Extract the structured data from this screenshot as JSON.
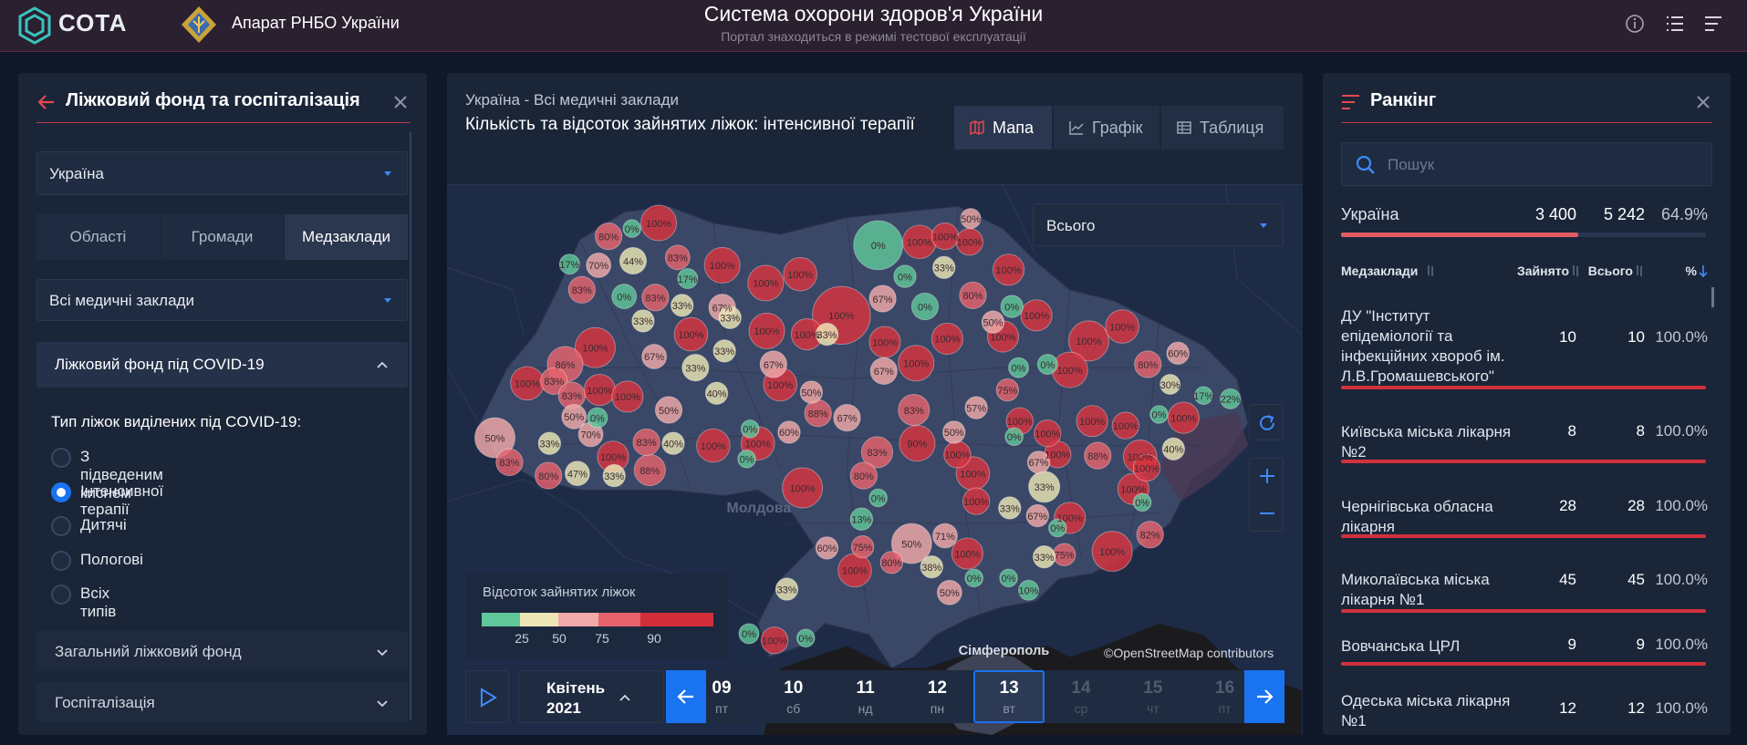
{
  "header": {
    "logo": "СОТА",
    "organization": "Апарат РНБО України",
    "title": "Система охорони здоров'я України",
    "subtitle": "Портал знаходиться в режимі тестової експлуатації"
  },
  "left_panel": {
    "title": "Ліжковий фонд та госпіталізація",
    "region": "Україна",
    "tabs": [
      "Області",
      "Громади",
      "Медзаклади"
    ],
    "facilities": "Всі медичні заклади",
    "sections": [
      "Ліжковий фонд під COVID-19",
      "Загальний ліжковий фонд",
      "Госпіталізація"
    ],
    "bed_type_label": "Тип ліжок виділених під COVID-19:",
    "bed_types": [
      "З підведеним киснем",
      "Інтенсивної терапії",
      "Дитячі",
      "Пологові",
      "Всіх типів"
    ]
  },
  "main_panel": {
    "breadcrumb": "Україна - Всі медичні заклади",
    "title": "Кількість та відсоток зайнятих ліжок: інтенсивної терапії",
    "views": [
      "Мапа",
      "Графік",
      "Таблиця"
    ],
    "filter": "Всього",
    "map": {
      "bubbles": [
        "100%",
        "80%",
        "0%",
        "83%",
        "17%",
        "70%",
        "44%",
        "17%",
        "100%",
        "83%",
        "0%",
        "83%",
        "33%",
        "67%",
        "33%",
        "100%",
        "100%",
        "0%",
        "100%",
        "100%",
        "50%",
        "100%",
        "33%",
        "0%",
        "67%",
        "0%",
        "80%",
        "100%",
        "0%",
        "50%",
        "100%",
        "100%",
        "100%",
        "100%",
        "80%",
        "60%",
        "30%",
        "17%",
        "22%",
        "100%",
        "0%",
        "40%",
        "100%",
        "100%",
        "88%",
        "100%",
        "100%",
        "100%",
        "0%",
        "82%",
        "100%",
        "75%",
        "33%",
        "100%",
        "33%",
        "33%",
        "67%",
        "0%",
        "67%",
        "100%",
        "0%",
        "100%",
        "100%",
        "100%",
        "100%",
        "100%",
        "100%",
        "71%",
        "38%",
        "50%",
        "0%",
        "0%",
        "10%",
        "50%",
        "13%",
        "75%",
        "80%",
        "100%",
        "60%",
        "80%",
        "0%",
        "83%",
        "90%",
        "83%",
        "50%",
        "57%",
        "75%",
        "0%",
        "0%",
        "100%",
        "100%",
        "100%",
        "67%",
        "100%",
        "100%",
        "33%",
        "100%",
        "67%",
        "100%",
        "33%",
        "100%",
        "67%",
        "33%",
        "33%",
        "100%",
        "86%",
        "100%",
        "83%",
        "83%",
        "100%",
        "100%",
        "50%",
        "0%",
        "50%",
        "40%",
        "100%",
        "50%",
        "67%",
        "88%",
        "60%",
        "100%",
        "0%",
        "100%",
        "0%",
        "40%",
        "83%",
        "100%",
        "33%",
        "47%",
        "80%",
        "33%",
        "83%",
        "50%",
        "70%",
        "88%",
        "100%",
        "33%",
        "100%",
        "0%",
        "0%"
      ],
      "places": [
        "Молдова",
        "Сімферополь"
      ],
      "attribution": "©OpenStreetMap contributors"
    },
    "legend": {
      "title": "Відсоток зайнятих ліжок",
      "ticks": [
        "25",
        "50",
        "75",
        "90"
      ]
    },
    "timeline": {
      "month": "Квітень",
      "year": "2021",
      "days": [
        {
          "day": "09",
          "weekday": "пт"
        },
        {
          "day": "10",
          "weekday": "сб"
        },
        {
          "day": "11",
          "weekday": "нд"
        },
        {
          "day": "12",
          "weekday": "пн"
        },
        {
          "day": "13",
          "weekday": "вт"
        },
        {
          "day": "14",
          "weekday": "ср"
        },
        {
          "day": "15",
          "weekday": "чт"
        },
        {
          "day": "16",
          "weekday": "пт"
        }
      ]
    }
  },
  "right_panel": {
    "title": "Ранкінг",
    "search_placeholder": "Пошук",
    "total": {
      "name": "Україна",
      "occupied": "3 400",
      "total": "5 242",
      "percent": "64.9%"
    },
    "columns": [
      "Медзаклади",
      "Зайнято",
      "Всього",
      "%"
    ],
    "rows": [
      {
        "name": "ДУ \"Інститут епідеміології та інфекційних хвороб ім. Л.В.Громашевського\"",
        "occupied": "10",
        "total": "10",
        "percent": "100.0%"
      },
      {
        "name": "Київська міська лікарня №2",
        "occupied": "8",
        "total": "8",
        "percent": "100.0%"
      },
      {
        "name": "Чернігівська обласна лікарня",
        "occupied": "28",
        "total": "28",
        "percent": "100.0%"
      },
      {
        "name": "Миколаївська міська лікарня №1",
        "occupied": "45",
        "total": "45",
        "percent": "100.0%"
      },
      {
        "name": "Вовчанська ЦРЛ",
        "occupied": "9",
        "total": "9",
        "percent": "100.0%"
      },
      {
        "name": "Одеська міська лікарня №1",
        "occupied": "12",
        "total": "12",
        "percent": "100.0%"
      }
    ]
  }
}
